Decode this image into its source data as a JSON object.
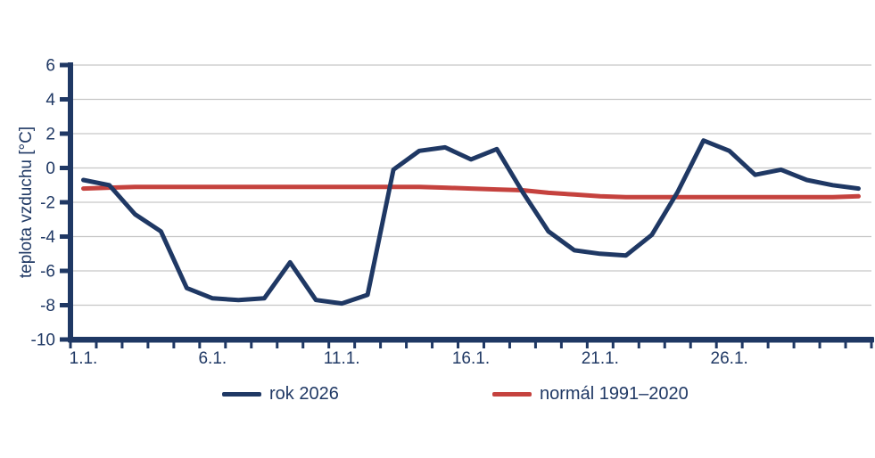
{
  "chart_data": {
    "type": "line",
    "title": "",
    "xlabel": "",
    "ylabel": "teplota vzduchu [°C]",
    "ylim": [
      -10,
      6
    ],
    "yticks": [
      6,
      4,
      2,
      0,
      -2,
      -4,
      -6,
      -8,
      -10
    ],
    "x_unit": "day of January",
    "x_days": [
      1,
      2,
      3,
      4,
      5,
      6,
      7,
      8,
      9,
      10,
      11,
      12,
      13,
      14,
      15,
      16,
      17,
      18,
      19,
      20,
      21,
      22,
      23,
      24,
      25,
      26,
      27,
      28,
      29,
      30,
      31
    ],
    "xticks": [
      {
        "day": 1,
        "label": "1.1."
      },
      {
        "day": 6,
        "label": "6.1."
      },
      {
        "day": 11,
        "label": "11.1."
      },
      {
        "day": 16,
        "label": "16.1."
      },
      {
        "day": 21,
        "label": "21.1."
      },
      {
        "day": 26,
        "label": "26.1."
      }
    ],
    "grid": "horizontal",
    "legend_position": "bottom",
    "series": [
      {
        "name": "rok 2026",
        "color": "#1f3864",
        "values": [
          -0.7,
          -1.0,
          -2.7,
          -3.7,
          -7.0,
          -7.6,
          -7.7,
          -7.6,
          -5.5,
          -7.7,
          -7.9,
          -7.4,
          -0.1,
          1.0,
          1.2,
          0.5,
          1.1,
          -1.4,
          -3.7,
          -4.8,
          -5.0,
          -5.1,
          -3.9,
          -1.4,
          1.6,
          1.0,
          -0.4,
          -0.1,
          -0.7,
          -1.0,
          -1.2
        ]
      },
      {
        "name": "normál 1991–2020",
        "color": "#c5423e",
        "values": [
          -1.2,
          -1.15,
          -1.1,
          -1.1,
          -1.1,
          -1.1,
          -1.1,
          -1.1,
          -1.1,
          -1.1,
          -1.1,
          -1.1,
          -1.1,
          -1.1,
          -1.15,
          -1.2,
          -1.25,
          -1.3,
          -1.45,
          -1.55,
          -1.65,
          -1.7,
          -1.7,
          -1.7,
          -1.7,
          -1.7,
          -1.7,
          -1.7,
          -1.7,
          -1.7,
          -1.65
        ]
      }
    ]
  },
  "colors": {
    "axis": "#1f3864",
    "text": "#1f3864",
    "grid": "#c6c6c6",
    "background": "#ffffff"
  }
}
